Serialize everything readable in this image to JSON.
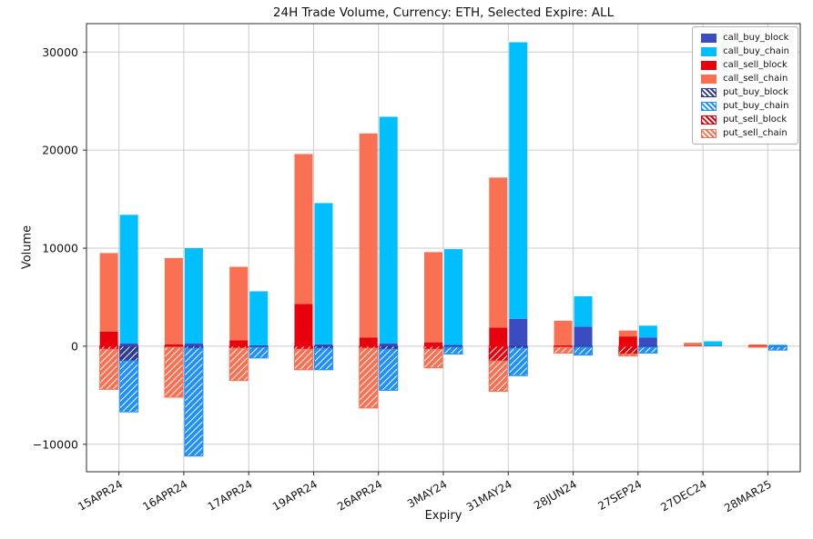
{
  "figure": {
    "background": "#ffffff",
    "grid_color": "#cccccc",
    "spine_color": "#2b2b2b"
  },
  "chart_data": {
    "type": "bar",
    "stacked": true,
    "title": "24H Trade Volume, Currency: ETH, Selected Expire: ALL",
    "xlabel": "Expiry",
    "ylabel": "Volume",
    "ylim": [
      -12800,
      32900
    ],
    "yticks": [
      -10000,
      0,
      10000,
      20000,
      30000
    ],
    "grid": true,
    "legend_position": "upper right",
    "categories": [
      "15APR24",
      "16APR24",
      "17APR24",
      "19APR24",
      "26APR24",
      "3MAY24",
      "31MAY24",
      "28JUN24",
      "27SEP24",
      "27DEC24",
      "28MAR25"
    ],
    "series": [
      {
        "name": "call_buy_block",
        "bar": "buy",
        "color": "#3b4cc0",
        "hatch": false,
        "values": [
          300,
          300,
          100,
          200,
          300,
          150,
          2800,
          2000,
          900,
          50,
          50
        ]
      },
      {
        "name": "call_buy_chain",
        "bar": "buy",
        "color": "#00bfff",
        "hatch": false,
        "values": [
          13100,
          9700,
          5500,
          14400,
          23100,
          9750,
          28200,
          3100,
          1200,
          450,
          100
        ]
      },
      {
        "name": "call_sell_block",
        "bar": "sell",
        "color": "#e8000d",
        "hatch": false,
        "values": [
          1500,
          200,
          600,
          4300,
          900,
          400,
          1900,
          100,
          1000,
          50,
          30
        ]
      },
      {
        "name": "call_sell_chain",
        "bar": "sell",
        "color": "#fa7052",
        "hatch": false,
        "values": [
          8000,
          8800,
          7500,
          15300,
          20800,
          9200,
          15300,
          2500,
          600,
          300,
          150
        ]
      },
      {
        "name": "put_buy_block",
        "bar": "buy",
        "color": "#2b3a9e",
        "hatch": true,
        "values": [
          -1500,
          -200,
          -100,
          -200,
          -300,
          -100,
          -200,
          -100,
          -100,
          0,
          -50
        ]
      },
      {
        "name": "put_buy_chain",
        "bar": "buy",
        "color": "#1e90ff",
        "hatch": true,
        "values": [
          -5200,
          -11000,
          -1100,
          -2200,
          -4200,
          -700,
          -2800,
          -800,
          -600,
          0,
          -350
        ]
      },
      {
        "name": "put_sell_block",
        "bar": "sell",
        "color": "#e8000d",
        "hatch": true,
        "values": [
          -300,
          -100,
          -200,
          -300,
          -200,
          -300,
          -1500,
          -100,
          -800,
          0,
          -50
        ]
      },
      {
        "name": "put_sell_chain",
        "bar": "sell",
        "color": "#fa7052",
        "hatch": true,
        "values": [
          -4100,
          -5100,
          -3300,
          -2100,
          -6100,
          -1900,
          -3100,
          -600,
          -200,
          0,
          -50
        ]
      }
    ]
  }
}
